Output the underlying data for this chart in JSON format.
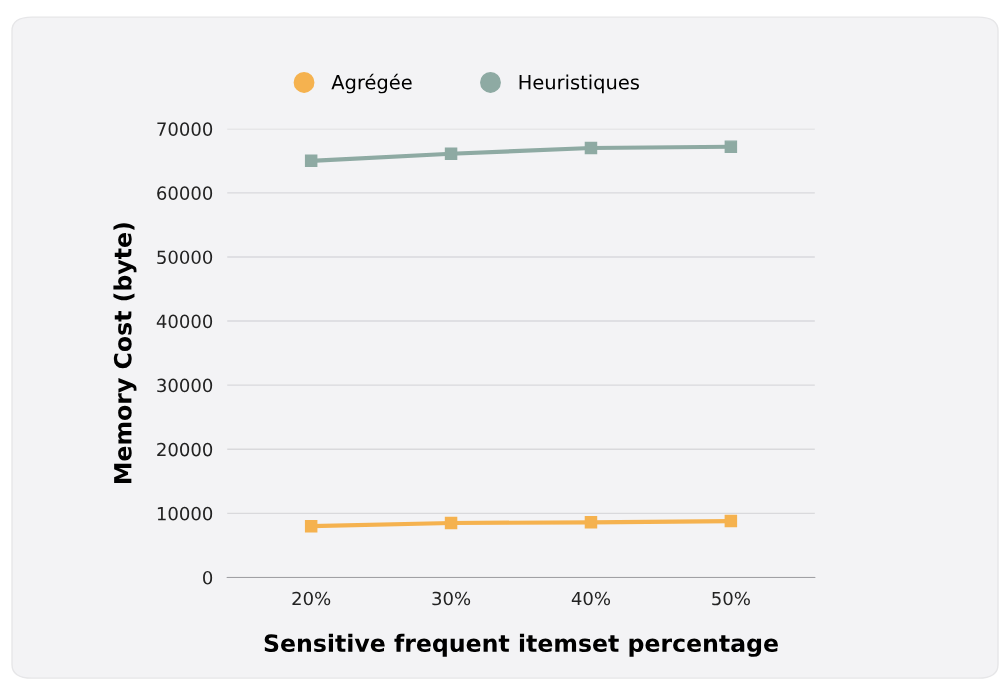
{
  "chart_data": {
    "type": "line",
    "xlabel": "Sensitive frequent itemset percentage",
    "ylabel": "Memory Cost (byte)",
    "categories": [
      "20%",
      "30%",
      "40%",
      "50%"
    ],
    "series": [
      {
        "name": "Agrégée",
        "color": "#f5b24f",
        "values": [
          8000,
          8500,
          8600,
          8800
        ]
      },
      {
        "name": "Heuristiques",
        "color": "#8eaaa3",
        "values": [
          65000,
          66100,
          67000,
          67200
        ]
      }
    ],
    "ylim": [
      0,
      70000
    ],
    "yticks": [
      0,
      10000,
      20000,
      30000,
      40000,
      50000,
      60000,
      70000
    ],
    "grid": "y",
    "legend": "top",
    "marker": "square",
    "line_style": "solid"
  }
}
